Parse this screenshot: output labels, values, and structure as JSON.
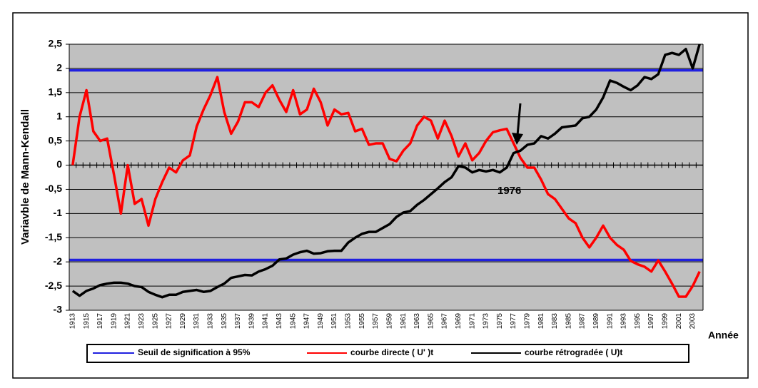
{
  "chart_data": {
    "type": "line",
    "y_label": "Variavble de Mann-Kendall",
    "x_label": "Année",
    "annotation": "1976",
    "categories": [
      "1913",
      null,
      "1915",
      null,
      "1917",
      null,
      "1919",
      null,
      "1921",
      null,
      "1923",
      null,
      "1925",
      null,
      "1927",
      null,
      "1929",
      null,
      "1931",
      null,
      "1933",
      null,
      "1935",
      null,
      "1937",
      null,
      "1939",
      null,
      "1941",
      null,
      "1943",
      null,
      "1945",
      null,
      "1947",
      null,
      "1949",
      null,
      "1951",
      null,
      "1953",
      null,
      "1955",
      null,
      "1957",
      null,
      "1959",
      null,
      "1961",
      null,
      "1963",
      null,
      "1965",
      null,
      "1967",
      null,
      "1969",
      null,
      "1971",
      null,
      "1973",
      null,
      "1975",
      null,
      "1977",
      null,
      "1979",
      null,
      "1981",
      null,
      "1983",
      null,
      "1985",
      null,
      "1987",
      null,
      "1989",
      null,
      "1991",
      null,
      "1993",
      null,
      "1995",
      null,
      "1997",
      null,
      "1999",
      null,
      "2001",
      null,
      "2003",
      null
    ],
    "threshold": {
      "name": "Seuil de signification à 95%",
      "color": "#2020e0",
      "values": [
        1.96,
        -1.96
      ]
    },
    "series": [
      {
        "name": "courbe directe ( U' )t",
        "color": "#ff0000",
        "values": [
          0,
          1.0,
          1.55,
          0.7,
          0.5,
          0.55,
          -0.2,
          -1.0,
          0.0,
          -0.8,
          -0.7,
          -1.25,
          -0.7,
          -0.35,
          -0.05,
          -0.15,
          0.1,
          0.2,
          0.8,
          1.15,
          1.45,
          1.82,
          1.1,
          0.65,
          0.9,
          1.3,
          1.3,
          1.2,
          1.5,
          1.65,
          1.35,
          1.1,
          1.55,
          1.05,
          1.15,
          1.58,
          1.3,
          0.82,
          1.15,
          1.05,
          1.08,
          0.7,
          0.75,
          0.42,
          0.45,
          0.45,
          0.13,
          0.08,
          0.3,
          0.45,
          0.82,
          1.0,
          0.92,
          0.55,
          0.92,
          0.6,
          0.18,
          0.45,
          0.1,
          0.25,
          0.5,
          0.68,
          0.72,
          0.75,
          0.45,
          0.15,
          -0.05,
          -0.05,
          -0.3,
          -0.6,
          -0.7,
          -0.9,
          -1.1,
          -1.2,
          -1.5,
          -1.7,
          -1.5,
          -1.25,
          -1.5,
          -1.65,
          -1.75,
          -1.98,
          -2.05,
          -2.1,
          -2.2,
          -1.97,
          -2.2,
          -2.45,
          -2.72,
          -2.72,
          -2.5,
          -2.2
        ]
      },
      {
        "name": "courbe  rétrogradée ( U)t",
        "color": "#000000",
        "values": [
          -2.6,
          -2.7,
          -2.6,
          -2.55,
          -2.48,
          -2.45,
          -2.43,
          -2.43,
          -2.45,
          -2.5,
          -2.52,
          -2.62,
          -2.68,
          -2.73,
          -2.68,
          -2.68,
          -2.62,
          -2.6,
          -2.58,
          -2.62,
          -2.6,
          -2.52,
          -2.45,
          -2.33,
          -2.3,
          -2.27,
          -2.28,
          -2.2,
          -2.15,
          -2.08,
          -1.95,
          -1.93,
          -1.85,
          -1.8,
          -1.77,
          -1.83,
          -1.82,
          -1.78,
          -1.77,
          -1.77,
          -1.6,
          -1.5,
          -1.42,
          -1.38,
          -1.38,
          -1.3,
          -1.22,
          -1.07,
          -0.98,
          -0.95,
          -0.82,
          -0.72,
          -0.6,
          -0.48,
          -0.35,
          -0.25,
          -0.02,
          -0.05,
          -0.15,
          -0.1,
          -0.13,
          -0.1,
          -0.15,
          -0.05,
          0.25,
          0.3,
          0.42,
          0.45,
          0.6,
          0.55,
          0.65,
          0.78,
          0.8,
          0.82,
          0.97,
          1.0,
          1.15,
          1.4,
          1.75,
          1.7,
          1.62,
          1.55,
          1.65,
          1.82,
          1.78,
          1.88,
          2.28,
          2.32,
          2.28,
          2.4,
          2.0,
          2.5
        ]
      }
    ],
    "ylim": [
      -3,
      2.5
    ],
    "yticks": [
      -3,
      {
        "value": -2.5,
        "label": "-2,5"
      },
      -2,
      {
        "value": -1.5,
        "label": "-1,5"
      },
      -1,
      {
        "value": -0.5,
        "label": "-0,5"
      },
      0,
      {
        "value": 0.5,
        "label": "0,5"
      },
      1,
      {
        "value": 1.5,
        "label": "1,5"
      },
      2,
      {
        "value": 2.5,
        "label": "2,5"
      }
    ],
    "grid": true
  }
}
